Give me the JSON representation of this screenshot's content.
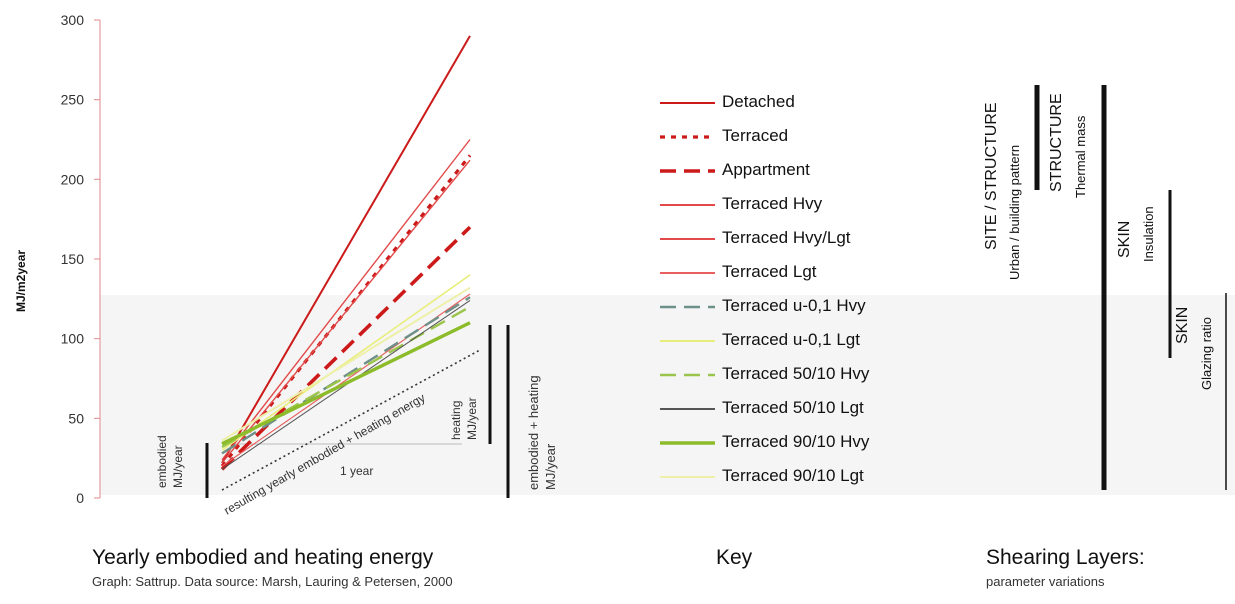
{
  "chart_data": {
    "type": "line",
    "title": "Yearly embodied and heating energy",
    "subtitle": "Graph: Sattrup. Data source: Marsh, Lauring & Petersen, 2000",
    "ylabel": "MJ/m2year",
    "ylim": [
      0,
      300
    ],
    "yticks": [
      "0",
      "50",
      "100",
      "150",
      "200",
      "250",
      "300"
    ],
    "x": [
      "0",
      "1 year"
    ],
    "series": [
      {
        "name": "Detached",
        "values": [
          22,
          290
        ],
        "color": "#cc1a1a",
        "style": "solid",
        "width": 2
      },
      {
        "name": "Terraced",
        "values": [
          20,
          215
        ],
        "color": "#cc1a1a",
        "style": "dotted",
        "width": 3.2
      },
      {
        "name": "Appartment",
        "values": [
          18,
          170
        ],
        "color": "#cc1a1a",
        "style": "dashed",
        "width": 3.6
      },
      {
        "name": "Terraced Hvy",
        "values": [
          24,
          225
        ],
        "color": "#e24a4a",
        "style": "solid",
        "width": 1.4
      },
      {
        "name": "Terraced Hvy/Lgt",
        "values": [
          22,
          212
        ],
        "color": "#e24a4a",
        "style": "solid",
        "width": 1.4
      },
      {
        "name": "Terraced Lgt",
        "values": [
          20,
          128
        ],
        "color": "#e86060",
        "style": "solid",
        "width": 1.2
      },
      {
        "name": "Terraced u-0,1 Hvy",
        "values": [
          28,
          126
        ],
        "color": "#6d8f87",
        "style": "dashed",
        "width": 2.4
      },
      {
        "name": "Terraced u-0,1 Lgt",
        "values": [
          30,
          140
        ],
        "color": "#e9ee7a",
        "style": "solid",
        "width": 1.6
      },
      {
        "name": "Terraced 50/10 Hvy",
        "values": [
          32,
          120
        ],
        "color": "#9bc44a",
        "style": "dashed",
        "width": 2.4
      },
      {
        "name": "Terraced 50/10 Lgt",
        "values": [
          18,
          124
        ],
        "color": "#555555",
        "style": "solid",
        "width": 1
      },
      {
        "name": "Terraced 90/10 Hvy",
        "values": [
          34,
          110
        ],
        "color": "#8cbc2a",
        "style": "solid",
        "width": 3.4
      },
      {
        "name": "Terraced 90/10 Lgt",
        "values": [
          36,
          132
        ],
        "color": "#eef0a8",
        "style": "solid",
        "width": 2
      }
    ],
    "annotations": {
      "embodied": [
        "embodied",
        "MJ/year"
      ],
      "heating": [
        "heating",
        "MJ/year"
      ],
      "embodied_heating": [
        "embodied + heating",
        "MJ/year"
      ],
      "one_year": "1 year",
      "resulting": "resulting yearly embodied + heating energy"
    }
  },
  "key": {
    "title": "Key"
  },
  "shearing": {
    "title": "Shearing Layers:",
    "subtitle": "parameter variations",
    "layers": [
      {
        "main": "SITE / STRUCTURE",
        "sub": "Urban / building pattern"
      },
      {
        "main": "STRUCTURE",
        "sub": "Thermal mass"
      },
      {
        "main": "SKIN",
        "sub": "Insulation"
      },
      {
        "main": "SKIN",
        "sub": "Glazing ratio"
      }
    ]
  }
}
